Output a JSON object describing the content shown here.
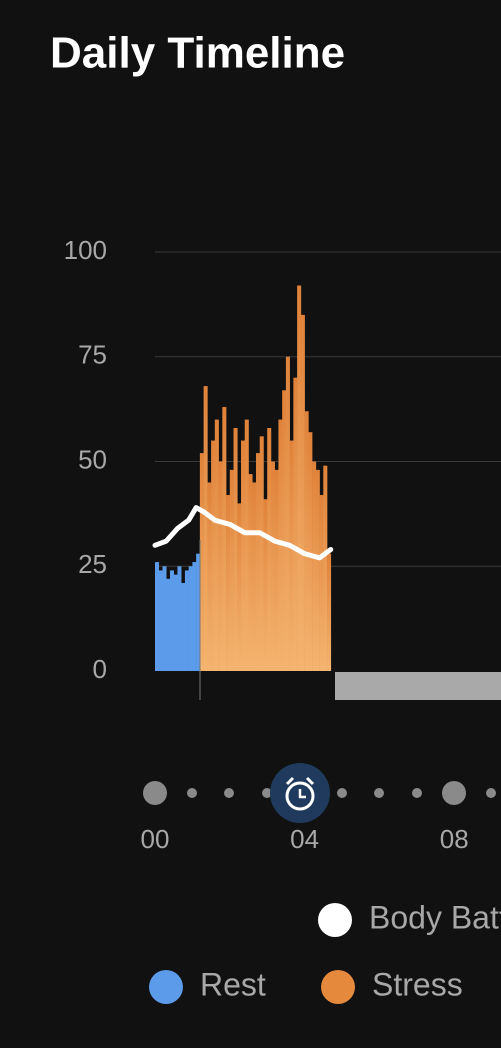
{
  "chart_data": {
    "type": "bar",
    "title": "Daily Timeline",
    "xlim": [
      0,
      9.25
    ],
    "ylim": [
      0,
      100
    ],
    "xticks": [
      {
        "value": 0,
        "label": "00"
      },
      {
        "value": 4,
        "label": "04"
      },
      {
        "value": 8,
        "label": "08"
      }
    ],
    "yticks": [
      0,
      25,
      50,
      75,
      100
    ],
    "grid": true,
    "series": [
      {
        "name": "Body Battery",
        "type": "line",
        "color": "#ffffff",
        "x": [
          0,
          0.3,
          0.6,
          0.9,
          1.1,
          1.3,
          1.6,
          2.0,
          2.4,
          2.8,
          3.2,
          3.6,
          4.0,
          4.4,
          4.7
        ],
        "values": [
          30,
          31,
          34,
          36,
          39,
          38,
          36,
          35,
          33,
          33,
          31,
          30,
          28,
          27,
          29
        ]
      },
      {
        "name": "Rest",
        "type": "bar",
        "color": "#5b9bea",
        "x": [
          0.0,
          0.1,
          0.2,
          0.3,
          0.4,
          0.5,
          0.6,
          0.7,
          0.8,
          0.9,
          1.0,
          1.1
        ],
        "values": [
          26,
          24,
          25,
          22,
          24,
          23,
          25,
          21,
          24,
          25,
          26,
          28
        ]
      },
      {
        "name": "Stress",
        "type": "bar",
        "color": "#e58a3c",
        "x": [
          1.2,
          1.3,
          1.4,
          1.5,
          1.6,
          1.7,
          1.8,
          1.9,
          2.0,
          2.1,
          2.2,
          2.3,
          2.4,
          2.5,
          2.6,
          2.7,
          2.8,
          2.9,
          3.0,
          3.1,
          3.2,
          3.3,
          3.4,
          3.5,
          3.6,
          3.7,
          3.8,
          3.9,
          4.0,
          4.1,
          4.2,
          4.3,
          4.4,
          4.5,
          4.6
        ],
        "values": [
          52,
          68,
          45,
          55,
          60,
          50,
          63,
          42,
          48,
          58,
          40,
          55,
          60,
          47,
          45,
          52,
          56,
          41,
          58,
          50,
          48,
          60,
          67,
          75,
          55,
          70,
          92,
          85,
          62,
          57,
          50,
          48,
          42,
          49,
          28
        ]
      }
    ]
  }
}
